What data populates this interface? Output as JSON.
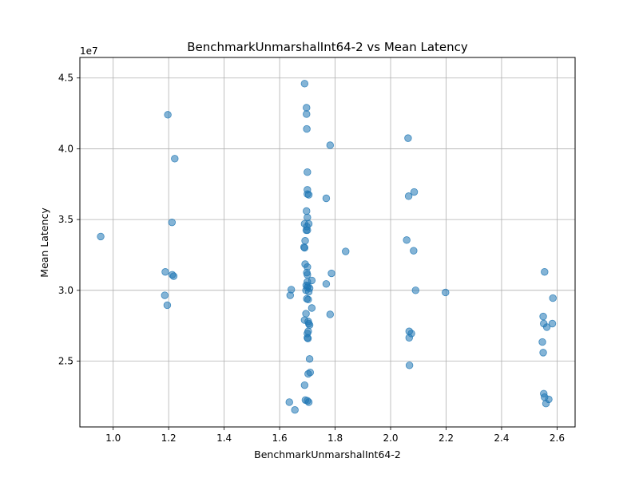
{
  "chart_data": {
    "type": "scatter",
    "title": "BenchmarkUnmarshalInt64-2 vs Mean Latency",
    "xlabel": "BenchmarkUnmarshalInt64-2",
    "ylabel": "Mean Latency",
    "offset_text": "1e7",
    "xlim": [
      0.88,
      2.665
    ],
    "ylim": [
      20350000.0,
      46450000.0
    ],
    "xticks": [
      1.0,
      1.2,
      1.4,
      1.6,
      1.8,
      2.0,
      2.2,
      2.4,
      2.6
    ],
    "xtick_labels": [
      "1.0",
      "1.2",
      "1.4",
      "1.6",
      "1.8",
      "2.0",
      "2.2",
      "2.4",
      "2.6"
    ],
    "yticks": [
      25000000,
      30000000,
      35000000,
      40000000,
      45000000
    ],
    "ytick_labels": [
      "2.5",
      "3.0",
      "3.5",
      "4.0",
      "4.5"
    ],
    "grid": true,
    "marker_color": "#1f77b4",
    "marker_alpha": 0.55,
    "points": [
      [
        0.955,
        33800000
      ],
      [
        1.197,
        42400000
      ],
      [
        1.222,
        39300000
      ],
      [
        1.212,
        34800000
      ],
      [
        1.188,
        31300000
      ],
      [
        1.213,
        31100000
      ],
      [
        1.218,
        31000000
      ],
      [
        1.186,
        29650000
      ],
      [
        1.195,
        28950000
      ],
      [
        1.69,
        44600000
      ],
      [
        1.697,
        42900000
      ],
      [
        1.697,
        42450000
      ],
      [
        1.698,
        41400000
      ],
      [
        1.7,
        38350000
      ],
      [
        1.7,
        37100000
      ],
      [
        1.7,
        36800000
      ],
      [
        1.705,
        36750000
      ],
      [
        1.697,
        35600000
      ],
      [
        1.7,
        35150000
      ],
      [
        1.69,
        34700000
      ],
      [
        1.705,
        34700000
      ],
      [
        1.698,
        34500000
      ],
      [
        1.696,
        34250000
      ],
      [
        1.7,
        34250000
      ],
      [
        1.692,
        33500000
      ],
      [
        1.688,
        33050000
      ],
      [
        1.69,
        33000000
      ],
      [
        1.692,
        31850000
      ],
      [
        1.7,
        31650000
      ],
      [
        1.698,
        31250000
      ],
      [
        1.7,
        31100000
      ],
      [
        1.716,
        30700000
      ],
      [
        1.7,
        30600000
      ],
      [
        1.696,
        30350000
      ],
      [
        1.702,
        30300000
      ],
      [
        1.7,
        30200000
      ],
      [
        1.708,
        30150000
      ],
      [
        1.695,
        30000000
      ],
      [
        1.705,
        29900000
      ],
      [
        1.698,
        29400000
      ],
      [
        1.703,
        29350000
      ],
      [
        1.716,
        28750000
      ],
      [
        1.695,
        28350000
      ],
      [
        1.69,
        27900000
      ],
      [
        1.703,
        27800000
      ],
      [
        1.705,
        27650000
      ],
      [
        1.708,
        27550000
      ],
      [
        1.703,
        27100000
      ],
      [
        1.7,
        26950000
      ],
      [
        1.7,
        26650000
      ],
      [
        1.702,
        26600000
      ],
      [
        1.708,
        25150000
      ],
      [
        1.71,
        24200000
      ],
      [
        1.703,
        24100000
      ],
      [
        1.69,
        23300000
      ],
      [
        1.693,
        22250000
      ],
      [
        1.7,
        22200000
      ],
      [
        1.705,
        22100000
      ],
      [
        1.638,
        29650000
      ],
      [
        1.642,
        30050000
      ],
      [
        1.635,
        22100000
      ],
      [
        1.655,
        21550000
      ],
      [
        1.768,
        36500000
      ],
      [
        1.768,
        30450000
      ],
      [
        1.782,
        40250000
      ],
      [
        1.787,
        31200000
      ],
      [
        1.782,
        28300000
      ],
      [
        1.838,
        32750000
      ],
      [
        2.063,
        40750000
      ],
      [
        2.065,
        36650000
      ],
      [
        2.085,
        36950000
      ],
      [
        2.058,
        33550000
      ],
      [
        2.083,
        32800000
      ],
      [
        2.09,
        30000000
      ],
      [
        2.067,
        27100000
      ],
      [
        2.075,
        26950000
      ],
      [
        2.067,
        26650000
      ],
      [
        2.068,
        24700000
      ],
      [
        2.198,
        29850000
      ],
      [
        2.555,
        31300000
      ],
      [
        2.585,
        29450000
      ],
      [
        2.55,
        28150000
      ],
      [
        2.552,
        27650000
      ],
      [
        2.563,
        27400000
      ],
      [
        2.583,
        27650000
      ],
      [
        2.547,
        26350000
      ],
      [
        2.55,
        25600000
      ],
      [
        2.552,
        22700000
      ],
      [
        2.555,
        22450000
      ],
      [
        2.57,
        22300000
      ],
      [
        2.56,
        22000000
      ]
    ]
  }
}
